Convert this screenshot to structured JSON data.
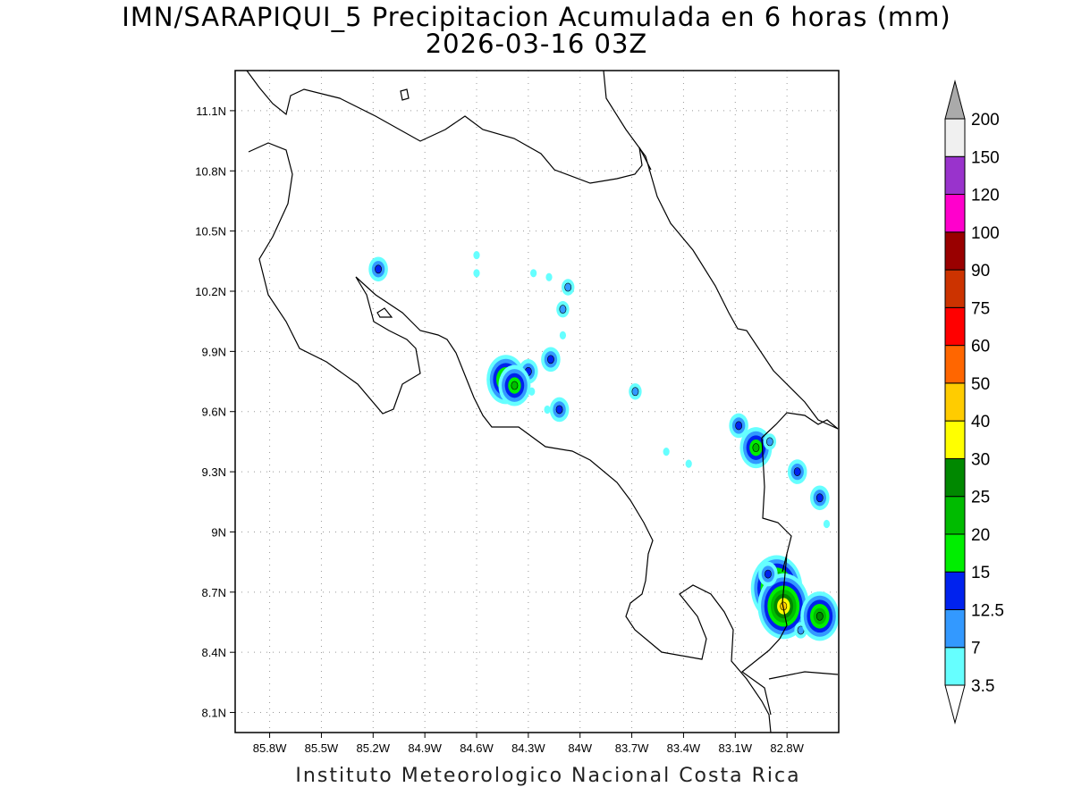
{
  "title": {
    "line1": "IMN/SARAPIQUI_5 Precipitacion Acumulada en 6 horas (mm)",
    "line2": "2026-03-16 03Z"
  },
  "credit": "Instituto Meteorologico Nacional Costa Rica",
  "chart_data": {
    "type": "heatmap",
    "x_range": [
      -86.0,
      -82.5
    ],
    "y_range": [
      8.0,
      11.3
    ],
    "x_ticks": [
      {
        "value": -85.8,
        "label": "85.8W"
      },
      {
        "value": -85.5,
        "label": "85.5W"
      },
      {
        "value": -85.2,
        "label": "85.2W"
      },
      {
        "value": -84.9,
        "label": "84.9W"
      },
      {
        "value": -84.6,
        "label": "84.6W"
      },
      {
        "value": -84.3,
        "label": "84.3W"
      },
      {
        "value": -84.0,
        "label": "84W"
      },
      {
        "value": -83.7,
        "label": "83.7W"
      },
      {
        "value": -83.4,
        "label": "83.4W"
      },
      {
        "value": -83.1,
        "label": "83.1W"
      },
      {
        "value": -82.8,
        "label": "82.8W"
      }
    ],
    "y_ticks": [
      {
        "value": 11.1,
        "label": "11.1N"
      },
      {
        "value": 10.8,
        "label": "10.8N"
      },
      {
        "value": 10.5,
        "label": "10.5N"
      },
      {
        "value": 10.2,
        "label": "10.2N"
      },
      {
        "value": 9.9,
        "label": "9.9N"
      },
      {
        "value": 9.6,
        "label": "9.6N"
      },
      {
        "value": 9.3,
        "label": "9.3N"
      },
      {
        "value": 9.0,
        "label": "9N"
      },
      {
        "value": 8.7,
        "label": "8.7N"
      },
      {
        "value": 8.4,
        "label": "8.4N"
      },
      {
        "value": 8.1,
        "label": "8.1N"
      }
    ],
    "grid": true,
    "colorbar": {
      "labels": [
        "3.5",
        "7",
        "12.5",
        "15",
        "20",
        "25",
        "30",
        "40",
        "50",
        "60",
        "75",
        "90",
        "100",
        "120",
        "150",
        "200"
      ],
      "colors": [
        "#66ffff",
        "#3399ff",
        "#0022ee",
        "#00ee00",
        "#00bb00",
        "#008800",
        "#ffff00",
        "#ffcc00",
        "#ff6600",
        "#ff0000",
        "#cc3300",
        "#990000",
        "#ff00cc",
        "#9933cc",
        "#f0f0f0",
        "#aaaaaa"
      ],
      "extend": "both"
    },
    "rain_cells": [
      {
        "lon": -85.17,
        "lat": 10.31,
        "value": 12.5
      },
      {
        "lon": -84.6,
        "lat": 10.29,
        "value": 3.5
      },
      {
        "lon": -84.6,
        "lat": 10.38,
        "value": 3.5
      },
      {
        "lon": -84.27,
        "lat": 10.29,
        "value": 3.5
      },
      {
        "lon": -84.18,
        "lat": 10.27,
        "value": 3.5
      },
      {
        "lon": -84.07,
        "lat": 10.22,
        "value": 7
      },
      {
        "lon": -84.1,
        "lat": 10.11,
        "value": 7
      },
      {
        "lon": -84.1,
        "lat": 9.98,
        "value": 3.5
      },
      {
        "lon": -84.17,
        "lat": 9.86,
        "value": 12.5
      },
      {
        "lon": -84.3,
        "lat": 9.8,
        "value": 12.5
      },
      {
        "lon": -84.43,
        "lat": 9.76,
        "value": 25
      },
      {
        "lon": -84.38,
        "lat": 9.73,
        "value": 20
      },
      {
        "lon": -84.28,
        "lat": 9.7,
        "value": 3.5
      },
      {
        "lon": -84.12,
        "lat": 9.61,
        "value": 12.5
      },
      {
        "lon": -84.19,
        "lat": 9.61,
        "value": 3.5
      },
      {
        "lon": -83.68,
        "lat": 9.7,
        "value": 7
      },
      {
        "lon": -83.37,
        "lat": 9.34,
        "value": 3.5
      },
      {
        "lon": -83.5,
        "lat": 9.4,
        "value": 3.5
      },
      {
        "lon": -83.08,
        "lat": 9.53,
        "value": 12.5
      },
      {
        "lon": -82.98,
        "lat": 9.42,
        "value": 20
      },
      {
        "lon": -82.9,
        "lat": 9.45,
        "value": 7
      },
      {
        "lon": -82.74,
        "lat": 9.3,
        "value": 12.5
      },
      {
        "lon": -82.61,
        "lat": 9.17,
        "value": 12.5
      },
      {
        "lon": -82.57,
        "lat": 9.04,
        "value": 3.5
      },
      {
        "lon": -82.86,
        "lat": 8.72,
        "value": 40
      },
      {
        "lon": -82.82,
        "lat": 8.63,
        "value": 40
      },
      {
        "lon": -82.91,
        "lat": 8.79,
        "value": 12.5
      },
      {
        "lon": -82.72,
        "lat": 8.51,
        "value": 7
      },
      {
        "lon": -82.61,
        "lat": 8.58,
        "value": 25
      }
    ]
  }
}
